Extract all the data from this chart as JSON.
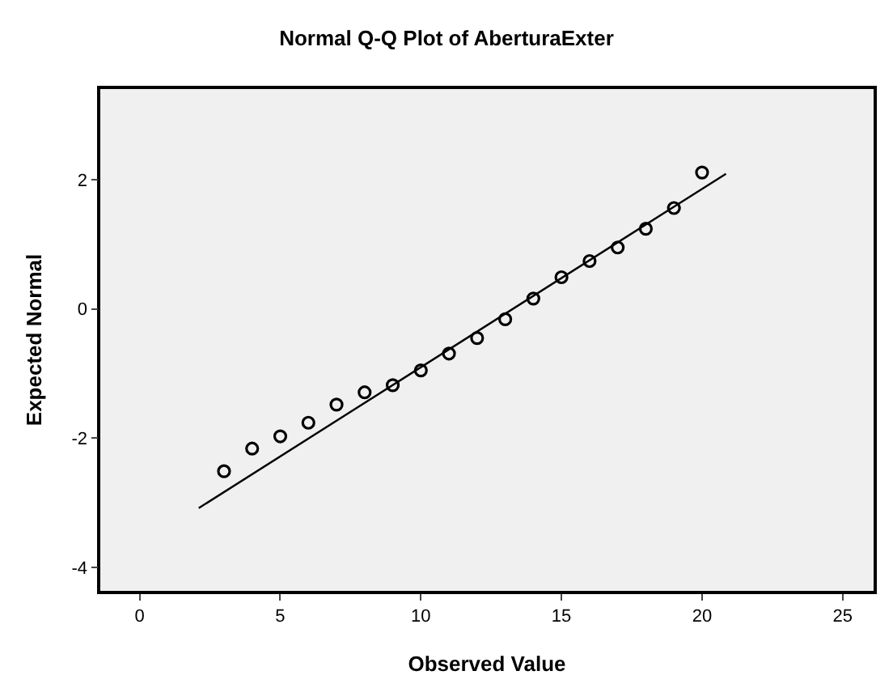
{
  "chart_data": {
    "type": "scatter",
    "title": "Normal Q-Q Plot of AberturaExter",
    "xlabel": "Observed Value",
    "ylabel": "Expected Normal",
    "x": [
      3,
      4,
      5,
      6,
      7,
      8,
      9,
      10,
      11,
      12,
      13,
      14,
      15,
      16,
      17,
      18,
      19,
      20
    ],
    "series": [
      {
        "color": "#000000",
        "marker": "circle",
        "values": [
          -2.51,
          -2.16,
          -1.97,
          -1.76,
          -1.48,
          -1.29,
          -1.18,
          -0.95,
          -0.69,
          -0.45,
          -0.16,
          0.16,
          0.49,
          0.74,
          0.95,
          1.24,
          1.56,
          2.11
        ]
      },
      {
        "type": "line",
        "color": "#000000",
        "x": [
          2.1,
          20.85
        ],
        "values": [
          -3.08,
          2.09
        ]
      }
    ],
    "xlim": [
      -1.4,
      26.1
    ],
    "ylim": [
      -4.36,
      3.4
    ],
    "xticks": [
      0,
      5,
      10,
      15,
      20,
      25
    ],
    "yticks": [
      -4,
      -2,
      0,
      2
    ]
  }
}
